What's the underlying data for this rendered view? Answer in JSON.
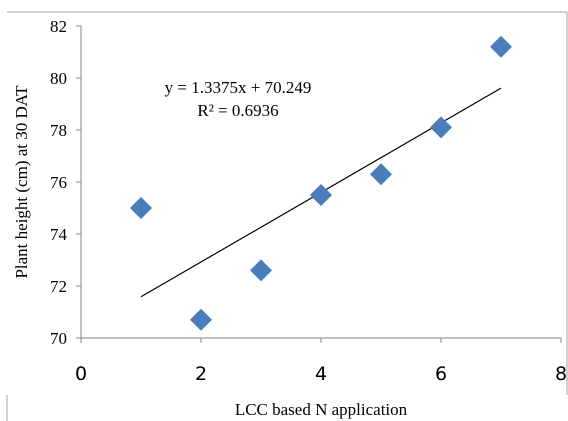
{
  "chart_data": {
    "type": "scatter",
    "xlabel": "LCC based N application",
    "ylabel": "Plant height (cm) at 30 DAT",
    "xlim": [
      0,
      8
    ],
    "ylim": [
      70,
      82
    ],
    "xticks": [
      "0",
      "2",
      "4",
      "6",
      "8"
    ],
    "yticks": [
      "70",
      "72",
      "74",
      "76",
      "78",
      "80",
      "82"
    ],
    "grid": false,
    "legend": "none",
    "marker": "diamond",
    "marker_color": "#4a7ebb",
    "points": [
      {
        "x": 1,
        "y": 75.0
      },
      {
        "x": 2,
        "y": 70.7
      },
      {
        "x": 3,
        "y": 72.6
      },
      {
        "x": 4,
        "y": 75.5
      },
      {
        "x": 5,
        "y": 76.3
      },
      {
        "x": 6,
        "y": 78.1
      },
      {
        "x": 7,
        "y": 81.2
      }
    ],
    "trendline": {
      "type": "linear",
      "slope": 1.3375,
      "intercept": 70.249,
      "x_range": [
        1,
        7
      ],
      "color": "#000000"
    },
    "annotations": {
      "equation": "y = 1.3375x + 70.249",
      "r_squared": "R² = 0.6936"
    }
  }
}
